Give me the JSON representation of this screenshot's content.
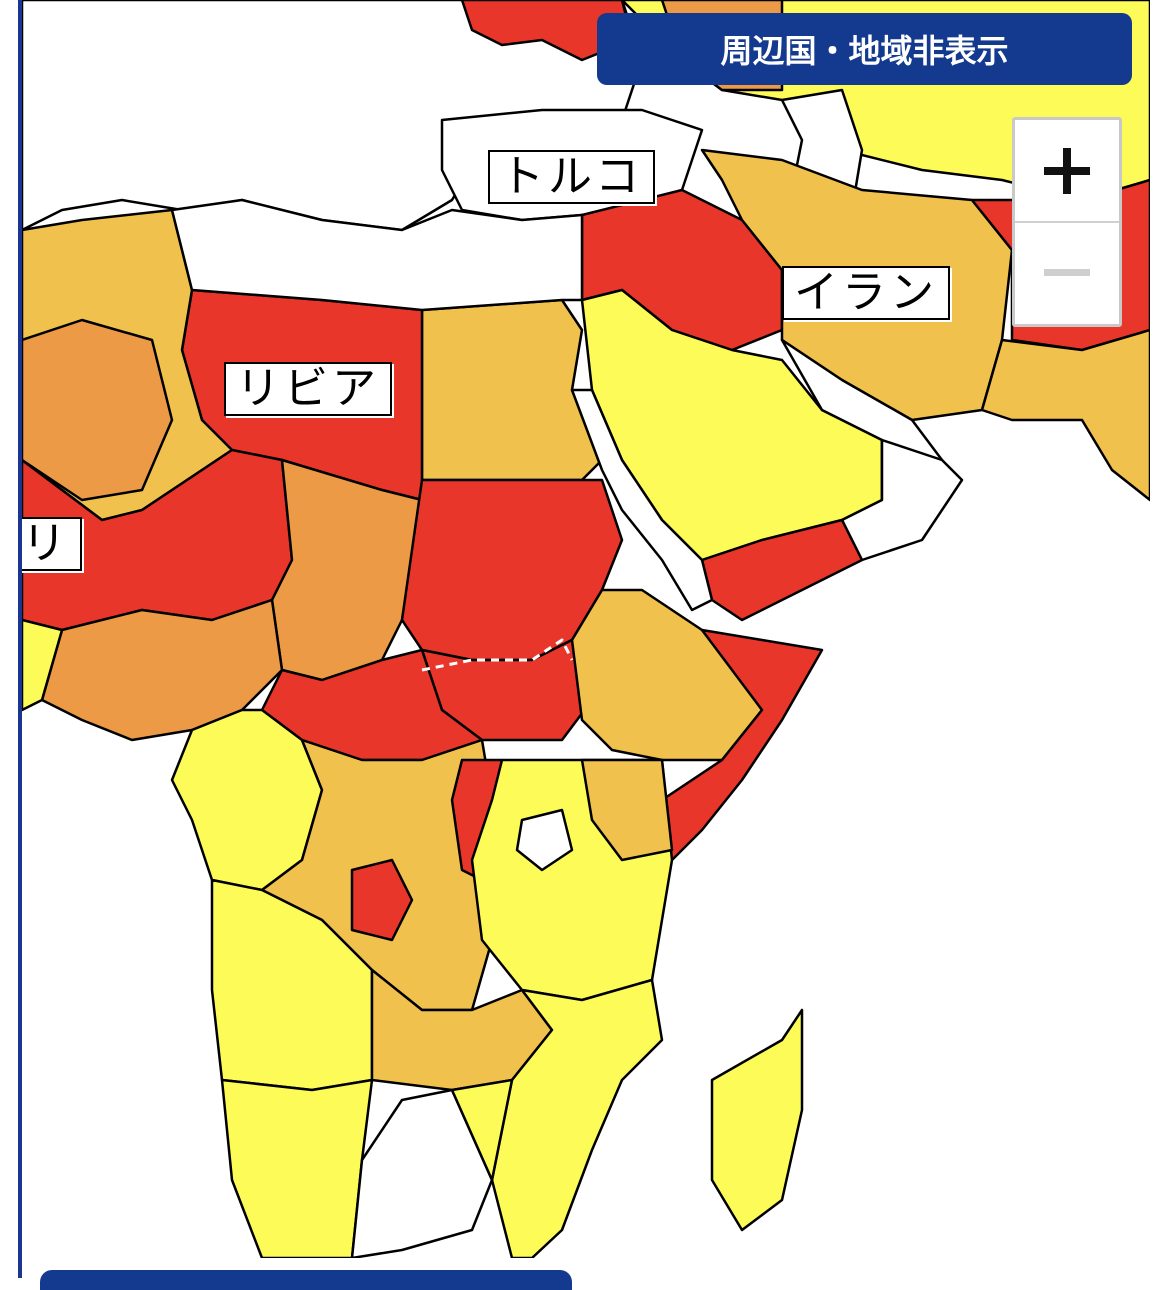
{
  "map": {
    "colors": {
      "level1_yellow": "#fdfb58",
      "level2_light_orange": "#f1c14e",
      "level3_orange": "#ec9a45",
      "level4_red": "#e8362a",
      "no_info_white": "#ffffff",
      "border": "#000000",
      "frame_blue": "#143a8f"
    },
    "labels": {
      "turkey": "トルコ",
      "iran": "イラン",
      "libya": "リビア",
      "mali_partial": "リ"
    }
  },
  "controls": {
    "toggle_neighbors_label": "周辺国・地域非表示",
    "zoom_in_icon": "plus-icon",
    "zoom_out_icon": "minus-icon"
  }
}
